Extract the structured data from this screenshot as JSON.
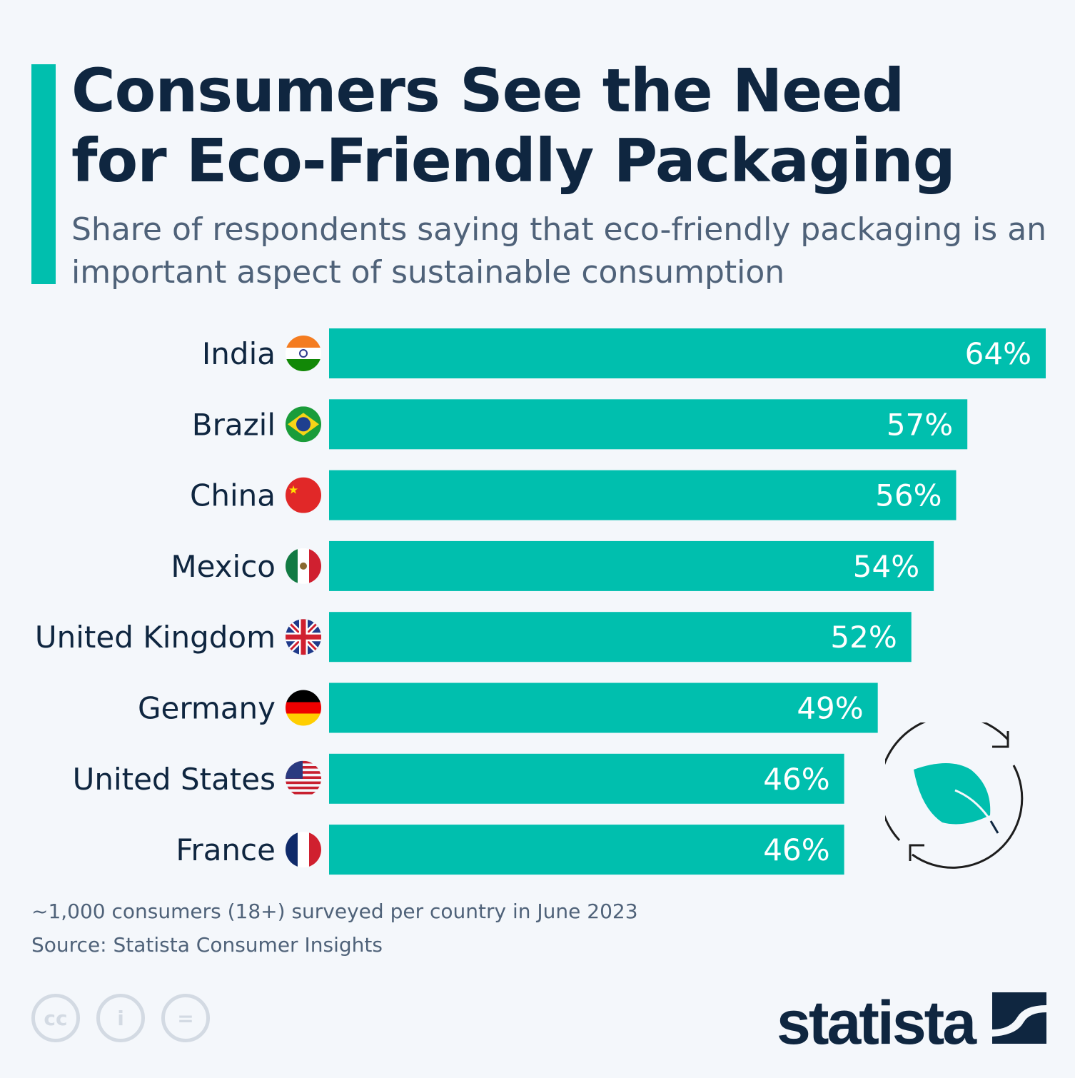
{
  "title_line1": "Consumers See the Need",
  "title_line2": "for Eco-Friendly Packaging",
  "subtitle": "Share of respondents saying that eco-friendly packaging is an important aspect of sustainable consumption",
  "chart_data": {
    "type": "bar",
    "orientation": "horizontal",
    "title": "Consumers See the Need for Eco-Friendly Packaging",
    "categories": [
      "India",
      "Brazil",
      "China",
      "Mexico",
      "United Kingdom",
      "Germany",
      "United States",
      "France"
    ],
    "values": [
      64,
      57,
      56,
      54,
      52,
      49,
      46,
      46
    ],
    "labels": [
      "64%",
      "57%",
      "56%",
      "54%",
      "52%",
      "49%",
      "46%",
      "46%"
    ],
    "unit": "%",
    "xlim": [
      0,
      64
    ],
    "grid": false,
    "bar_color": "#00bfae"
  },
  "footnote": "~1,000 consumers (18+) surveyed per country in June 2023",
  "source": "Source: Statista Consumer Insights",
  "logo": "statista",
  "colors": {
    "accent": "#00bfae",
    "title": "#0f2640",
    "text": "#4f6279"
  }
}
